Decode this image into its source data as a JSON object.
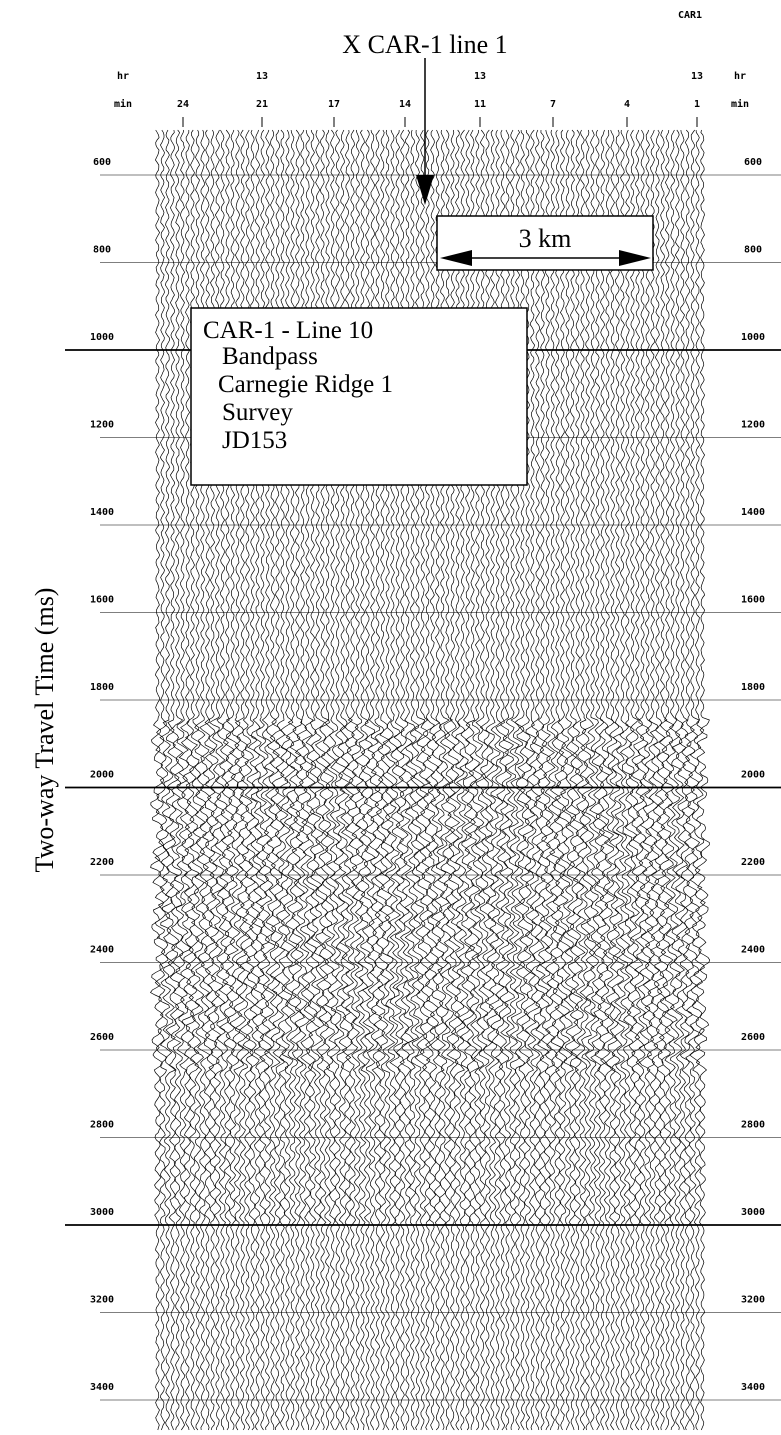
{
  "header": {
    "corner_label": "CAR1",
    "title": "X CAR-1 line 1"
  },
  "top_axis": {
    "hours_label": "hr",
    "minutes_label": "min",
    "hours": [
      13,
      13,
      13
    ],
    "minutes": [
      24,
      21,
      17,
      14,
      11,
      7,
      4,
      1
    ]
  },
  "y_axis": {
    "label": "Two-way Travel Time (ms)",
    "ticks": [
      600,
      800,
      1000,
      1200,
      1400,
      1600,
      1800,
      2000,
      2200,
      2400,
      2600,
      2800,
      3000,
      3200,
      3400
    ]
  },
  "scale_bar": {
    "label": "3 km"
  },
  "info_box": {
    "lines": [
      "CAR-1 - Line 10",
      "Bandpass",
      "Carnegie Ridge 1",
      "Survey",
      "JD153"
    ]
  }
}
